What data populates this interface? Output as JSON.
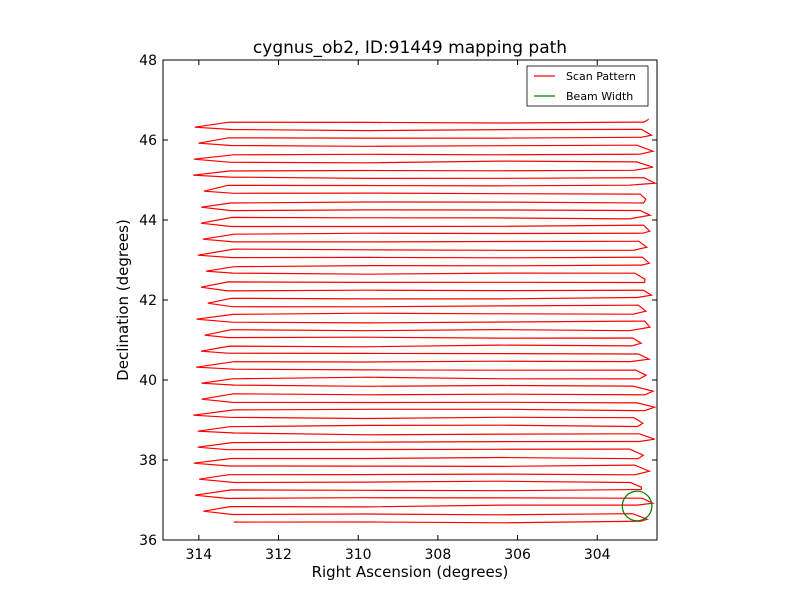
{
  "chart_data": {
    "type": "line",
    "title": "cygnus_ob2, ID:91449 mapping path",
    "xlabel": "Right Ascension (degrees)",
    "ylabel": "Declination (degrees)",
    "xlim": [
      314.9,
      302.5
    ],
    "ylim": [
      36,
      48
    ],
    "x_inverted": true,
    "xticks": [
      314,
      312,
      310,
      308,
      306,
      304
    ],
    "xtick_labels": [
      "314",
      "312",
      "310",
      "308",
      "306",
      "304"
    ],
    "yticks": [
      36,
      38,
      40,
      42,
      44,
      46,
      48
    ],
    "ytick_labels": [
      "36",
      "38",
      "40",
      "42",
      "44",
      "46",
      "48"
    ],
    "grid": false,
    "legend_position": "top-right",
    "series": [
      {
        "name": "Scan Pattern",
        "color": "#ff0000",
        "scan_legs": {
          "dec_start": 36.45,
          "dec_end": 46.4,
          "dec_step": 0.2,
          "ra_west_edge": 313.2,
          "ra_east_edge": 303.0,
          "ra_west_turn": 314.0,
          "ra_east_turn": 302.6
        }
      },
      {
        "name": "Beam Width",
        "color": "#008000",
        "shape": "circle",
        "center_ra": 303.0,
        "center_dec": 36.85,
        "radius_deg": 0.37
      }
    ]
  }
}
